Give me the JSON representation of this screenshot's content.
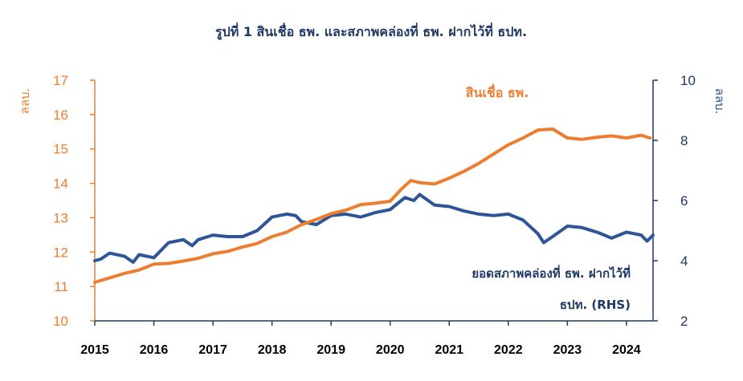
{
  "chart_data": {
    "type": "line",
    "title": "รูปที่ 1 สินเชื่อ ธพ. และสภาพคล่องที่ ธพ. ฝากไว้ที่ ธปท.",
    "ylabel_left": "ลลบ.",
    "ylabel_right": "ลลบ.",
    "ylim_left": [
      10,
      17
    ],
    "ylim_right": [
      2,
      10
    ],
    "left_ticks": [
      "10",
      "11",
      "12",
      "13",
      "14",
      "15",
      "16",
      "17"
    ],
    "right_ticks": [
      "2",
      "4",
      "6",
      "8",
      "10"
    ],
    "x_ticks": [
      "2015",
      "2016",
      "2017",
      "2018",
      "2019",
      "2020",
      "2021",
      "2022",
      "2023",
      "2024"
    ],
    "grid": false,
    "legend": "inline labels",
    "colors": {
      "loans": "#ed7d31",
      "deposits": "#2e5597",
      "axis_right": "#1f3864"
    },
    "series": [
      {
        "name": "สินเชื่อ ธพ.",
        "axis": "left",
        "points": [
          [
            2015.0,
            11.12
          ],
          [
            2015.25,
            11.25
          ],
          [
            2015.5,
            11.38
          ],
          [
            2015.75,
            11.48
          ],
          [
            2016.0,
            11.65
          ],
          [
            2016.25,
            11.67
          ],
          [
            2016.5,
            11.74
          ],
          [
            2016.75,
            11.82
          ],
          [
            2017.0,
            11.95
          ],
          [
            2017.25,
            12.02
          ],
          [
            2017.5,
            12.15
          ],
          [
            2017.75,
            12.25
          ],
          [
            2018.0,
            12.45
          ],
          [
            2018.25,
            12.58
          ],
          [
            2018.5,
            12.8
          ],
          [
            2018.75,
            12.95
          ],
          [
            2019.0,
            13.12
          ],
          [
            2019.25,
            13.22
          ],
          [
            2019.5,
            13.38
          ],
          [
            2019.75,
            13.42
          ],
          [
            2020.0,
            13.48
          ],
          [
            2020.2,
            13.85
          ],
          [
            2020.35,
            14.08
          ],
          [
            2020.5,
            14.02
          ],
          [
            2020.75,
            13.98
          ],
          [
            2021.0,
            14.15
          ],
          [
            2021.25,
            14.35
          ],
          [
            2021.5,
            14.58
          ],
          [
            2021.75,
            14.85
          ],
          [
            2022.0,
            15.12
          ],
          [
            2022.25,
            15.32
          ],
          [
            2022.5,
            15.55
          ],
          [
            2022.75,
            15.58
          ],
          [
            2023.0,
            15.32
          ],
          [
            2023.25,
            15.28
          ],
          [
            2023.5,
            15.34
          ],
          [
            2023.75,
            15.38
          ],
          [
            2024.0,
            15.32
          ],
          [
            2024.25,
            15.4
          ],
          [
            2024.4,
            15.32
          ]
        ]
      },
      {
        "name": "ยอดสภาพคล่องที่ ธพ. ฝากไว้ที่ ธปท. (RHS)",
        "label_lines": [
          "ยอดสภาพคล่องที่ ธพ. ฝากไว้ที่",
          "ธปท. (RHS)"
        ],
        "axis": "right",
        "points": [
          [
            2015.0,
            4.0
          ],
          [
            2015.1,
            4.05
          ],
          [
            2015.25,
            4.25
          ],
          [
            2015.5,
            4.15
          ],
          [
            2015.65,
            3.95
          ],
          [
            2015.75,
            4.2
          ],
          [
            2016.0,
            4.1
          ],
          [
            2016.25,
            4.6
          ],
          [
            2016.5,
            4.7
          ],
          [
            2016.65,
            4.5
          ],
          [
            2016.75,
            4.7
          ],
          [
            2017.0,
            4.85
          ],
          [
            2017.25,
            4.8
          ],
          [
            2017.5,
            4.8
          ],
          [
            2017.75,
            5.0
          ],
          [
            2018.0,
            5.45
          ],
          [
            2018.25,
            5.55
          ],
          [
            2018.4,
            5.5
          ],
          [
            2018.5,
            5.3
          ],
          [
            2018.75,
            5.2
          ],
          [
            2019.0,
            5.5
          ],
          [
            2019.25,
            5.55
          ],
          [
            2019.5,
            5.45
          ],
          [
            2019.75,
            5.6
          ],
          [
            2020.0,
            5.7
          ],
          [
            2020.25,
            6.1
          ],
          [
            2020.4,
            6.0
          ],
          [
            2020.5,
            6.2
          ],
          [
            2020.75,
            5.85
          ],
          [
            2021.0,
            5.8
          ],
          [
            2021.25,
            5.65
          ],
          [
            2021.5,
            5.55
          ],
          [
            2021.75,
            5.5
          ],
          [
            2022.0,
            5.55
          ],
          [
            2022.25,
            5.35
          ],
          [
            2022.5,
            4.9
          ],
          [
            2022.6,
            4.6
          ],
          [
            2022.75,
            4.8
          ],
          [
            2023.0,
            5.15
          ],
          [
            2023.25,
            5.1
          ],
          [
            2023.5,
            4.95
          ],
          [
            2023.75,
            4.75
          ],
          [
            2024.0,
            4.95
          ],
          [
            2024.25,
            4.85
          ],
          [
            2024.35,
            4.65
          ],
          [
            2024.45,
            4.85
          ]
        ]
      }
    ]
  }
}
